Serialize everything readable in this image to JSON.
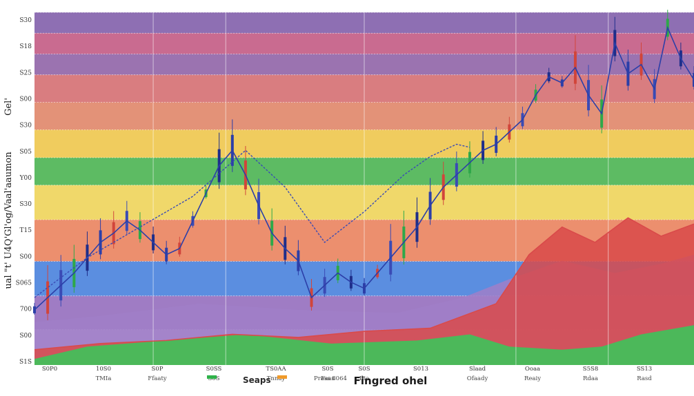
{
  "chart_data": {
    "type": "line",
    "title": "",
    "ylabel_top": "Gel'",
    "ylabel": "ual \"t' U4Q'Gl'og/Vaal'aaumon",
    "xlabel": "Fingred ohel",
    "legend": [
      {
        "label": "Seaps",
        "color": "#2a2a2a"
      },
      {
        "label": "Prass 8064",
        "color": "#2a2a2a"
      }
    ],
    "y_ticks": [
      "S30",
      "S18",
      "S25",
      "S00",
      "S30",
      "S05",
      "Y00",
      "S30",
      "T15",
      "S00",
      "S065",
      "700",
      "S00",
      "S1S"
    ],
    "x_ticks": [
      {
        "top": "S0P0",
        "bottom": ""
      },
      {
        "top": "10S0",
        "bottom": "TMIa"
      },
      {
        "top": "S0P",
        "bottom": "Ffaaty"
      },
      {
        "top": "S0SS",
        "bottom": "S0S"
      },
      {
        "top": "TS0AA",
        "bottom": "Tnnay"
      },
      {
        "top": "S0S",
        "bottom": "Faas"
      },
      {
        "top": "S0S",
        "bottom": "Ilta"
      },
      {
        "top": "S013",
        "bottom": ""
      },
      {
        "top": "Slaad",
        "bottom": "Ofaady"
      },
      {
        "top": "Ooaa",
        "bottom": "Reaiy"
      },
      {
        "top": "S5S8",
        "bottom": "Rdaa"
      },
      {
        "top": "SS13",
        "bottom": "Rasd"
      }
    ],
    "bands": [
      {
        "from": 0,
        "to": 0.059,
        "color": "#8e6fb3"
      },
      {
        "from": 0.059,
        "to": 0.118,
        "color": "#c96b90"
      },
      {
        "from": 0.118,
        "to": 0.177,
        "color": "#9b73b0"
      },
      {
        "from": 0.177,
        "to": 0.255,
        "color": "#d97d80"
      },
      {
        "from": 0.255,
        "to": 0.333,
        "color": "#e39278"
      },
      {
        "from": 0.333,
        "to": 0.412,
        "color": "#f0cc5e"
      },
      {
        "from": 0.412,
        "to": 0.49,
        "color": "#5dbb63"
      },
      {
        "from": 0.49,
        "to": 0.588,
        "color": "#f0d86a"
      },
      {
        "from": 0.588,
        "to": 0.706,
        "color": "#ec8f6e"
      },
      {
        "from": 0.706,
        "to": 0.804,
        "color": "#5b8ee0"
      },
      {
        "from": 0.804,
        "to": 0.9,
        "color": "#9f7cc4"
      },
      {
        "from": 0.9,
        "to": 1.0,
        "color": "#b8a0d6"
      }
    ],
    "series": [
      {
        "kind": "price",
        "color": "#2c3fa8",
        "x": [
          0,
          2,
          4,
          6,
          8,
          10,
          12,
          14,
          16,
          18,
          20,
          22,
          24,
          26,
          28,
          30,
          32,
          34,
          36,
          38,
          40,
          42,
          44,
          46,
          48,
          50,
          52,
          54,
          56,
          58,
          60,
          62,
          64,
          66,
          68,
          70,
          72,
          74,
          76,
          78,
          80,
          82,
          84,
          86,
          88,
          90,
          92,
          94,
          96,
          98,
          100
        ],
        "y": [
          0.18,
          0.22,
          0.26,
          0.3,
          0.35,
          0.4,
          0.43,
          0.47,
          0.44,
          0.4,
          0.36,
          0.38,
          0.47,
          0.56,
          0.65,
          0.7,
          0.62,
          0.52,
          0.43,
          0.38,
          0.34,
          0.22,
          0.26,
          0.3,
          0.27,
          0.25,
          0.3,
          0.35,
          0.4,
          0.45,
          0.52,
          0.58,
          0.62,
          0.66,
          0.7,
          0.72,
          0.76,
          0.8,
          0.88,
          0.94,
          0.92,
          0.97,
          0.88,
          0.82,
          1.05,
          0.95,
          0.98,
          0.9,
          1.1,
          1.0,
          0.93
        ]
      },
      {
        "kind": "band",
        "color": "#d94a4a",
        "x": [
          0,
          10,
          20,
          30,
          40,
          50,
          60,
          70,
          75,
          80,
          85,
          90,
          95,
          100
        ],
        "y": [
          0.05,
          0.07,
          0.08,
          0.1,
          0.09,
          0.11,
          0.12,
          0.2,
          0.36,
          0.45,
          0.4,
          0.48,
          0.42,
          0.46
        ]
      },
      {
        "kind": "trend",
        "color": "#3a4bb5",
        "x": [
          0,
          8,
          16,
          24,
          32,
          38,
          44,
          50,
          56,
          60,
          64,
          66
        ],
        "y": [
          0.22,
          0.35,
          0.45,
          0.55,
          0.7,
          0.58,
          0.4,
          0.5,
          0.62,
          0.68,
          0.72,
          0.71
        ]
      }
    ]
  }
}
